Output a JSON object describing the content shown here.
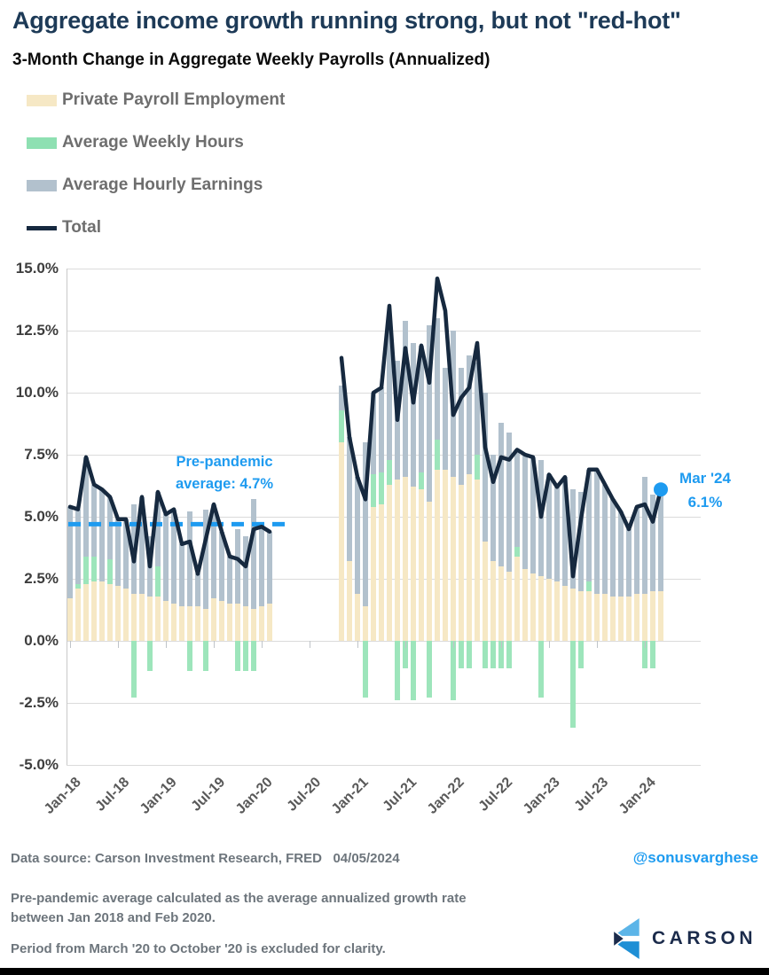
{
  "title": "Aggregate income growth running strong, but not \"red-hot\"",
  "subtitle": "3-Month Change in Aggregate Weekly Payrolls (Annualized)",
  "colors": {
    "title": "#1d3a57",
    "employment_bar": "#f6e8c5",
    "hours_bar": "#9de5bb",
    "earnings_bar": "#b2c1cd",
    "total_line": "#16293f",
    "accent_blue": "#1e9bf0",
    "gridline": "#dbdbdb",
    "footer_text": "#6d757c",
    "logo_navy": "#1b2b4b",
    "logo_light_blue": "#5cb5e8",
    "logo_mid_blue": "#1e8fd5"
  },
  "legend": {
    "items": [
      {
        "label": "Private Payroll Employment",
        "color": "#f6e8c5",
        "type": "box"
      },
      {
        "label": "Average Weekly Hours",
        "color": "#8ee0b2",
        "type": "box"
      },
      {
        "label": "Average Hourly Earnings",
        "color": "#b2c1cd",
        "type": "box"
      },
      {
        "label": "Total",
        "color": "#16293f",
        "type": "line"
      }
    ]
  },
  "chart_data": {
    "type": "bar",
    "subtype": "stacked-bar-with-line-overlay",
    "title": "3-Month Change in Aggregate Weekly Payrolls (Annualized)",
    "xlabel": "",
    "ylabel": "",
    "ylim": [
      -5.0,
      15.0
    ],
    "ytick_step": 2.5,
    "y_tick_labels": [
      "15.0%",
      "12.5%",
      "10.0%",
      "7.5%",
      "5.0%",
      "2.5%",
      "0.0%",
      "-2.5%",
      "-5.0%"
    ],
    "grid": true,
    "legend_position": "top-left",
    "excluded_period": {
      "from": "Mar-20",
      "to": "Oct-20",
      "note": "gap in bars and line"
    },
    "categories": [
      "Jan-18",
      "Feb-18",
      "Mar-18",
      "Apr-18",
      "May-18",
      "Jun-18",
      "Jul-18",
      "Aug-18",
      "Sep-18",
      "Oct-18",
      "Nov-18",
      "Dec-18",
      "Jan-19",
      "Feb-19",
      "Mar-19",
      "Apr-19",
      "May-19",
      "Jun-19",
      "Jul-19",
      "Aug-19",
      "Sep-19",
      "Oct-19",
      "Nov-19",
      "Dec-19",
      "Jan-20",
      "Feb-20",
      "Nov-20",
      "Dec-20",
      "Jan-21",
      "Feb-21",
      "Mar-21",
      "Apr-21",
      "May-21",
      "Jun-21",
      "Jul-21",
      "Aug-21",
      "Sep-21",
      "Oct-21",
      "Nov-21",
      "Dec-21",
      "Jan-22",
      "Feb-22",
      "Mar-22",
      "Apr-22",
      "May-22",
      "Jun-22",
      "Jul-22",
      "Aug-22",
      "Sep-22",
      "Oct-22",
      "Nov-22",
      "Dec-22",
      "Jan-23",
      "Feb-23",
      "Mar-23",
      "Apr-23",
      "May-23",
      "Jun-23",
      "Jul-23",
      "Aug-23",
      "Sep-23",
      "Oct-23",
      "Nov-23",
      "Dec-23",
      "Jan-24",
      "Feb-24",
      "Mar-24"
    ],
    "gap_after_index": 25,
    "gap_slots": 8,
    "series": [
      {
        "name": "Private Payroll Employment",
        "color": "#f6e8c5",
        "values": [
          1.7,
          2.1,
          2.3,
          2.4,
          2.4,
          2.3,
          2.2,
          2.1,
          1.9,
          1.9,
          1.8,
          1.8,
          1.6,
          1.5,
          1.4,
          1.4,
          1.4,
          1.3,
          1.7,
          1.6,
          1.5,
          1.5,
          1.4,
          1.3,
          1.4,
          1.5,
          8.0,
          3.2,
          1.9,
          1.4,
          5.4,
          5.5,
          6.3,
          6.5,
          6.6,
          6.2,
          6.1,
          5.6,
          6.9,
          6.9,
          6.6,
          6.3,
          6.7,
          6.5,
          4.0,
          3.2,
          3.0,
          2.8,
          3.4,
          2.9,
          2.7,
          2.6,
          2.5,
          2.4,
          2.2,
          2.1,
          2.0,
          2.0,
          1.9,
          1.9,
          1.8,
          1.8,
          1.8,
          1.9,
          1.9,
          2.0,
          2.0
        ]
      },
      {
        "name": "Average Weekly Hours",
        "color": "#9de5bb",
        "values": [
          0,
          0.2,
          1.1,
          1.0,
          0,
          1.0,
          0,
          0,
          -2.3,
          0,
          -1.2,
          1.2,
          0,
          0,
          0,
          -1.2,
          0,
          -1.2,
          0,
          0,
          0,
          -1.2,
          -1.2,
          -1.2,
          0,
          0,
          1.3,
          0,
          0,
          -2.3,
          1.3,
          1.3,
          1.0,
          -2.4,
          -1.1,
          -2.4,
          0.7,
          -2.3,
          1.2,
          0,
          -2.4,
          -1.1,
          -1.1,
          1.0,
          -1.1,
          -1.1,
          -1.1,
          -1.1,
          0.4,
          0,
          0,
          -2.3,
          0,
          0,
          0,
          -3.5,
          -1.1,
          0.4,
          0,
          0,
          0,
          0,
          0,
          0,
          -1.1,
          -1.1,
          0
        ]
      },
      {
        "name": "Average Hourly Earnings",
        "color": "#b2c1cd",
        "values": [
          3.7,
          3.0,
          4.0,
          2.9,
          3.7,
          2.5,
          2.7,
          2.8,
          3.6,
          3.9,
          2.4,
          3.0,
          3.5,
          3.8,
          2.5,
          3.8,
          1.3,
          4.0,
          3.8,
          2.8,
          1.9,
          3.0,
          2.8,
          4.4,
          3.2,
          2.9,
          1.0,
          5.0,
          4.7,
          6.6,
          3.3,
          3.4,
          5.2,
          4.8,
          6.3,
          5.8,
          5.1,
          7.1,
          4.9,
          4.1,
          5.9,
          4.7,
          4.8,
          3.7,
          6.0,
          4.3,
          5.8,
          5.6,
          3.9,
          4.6,
          4.7,
          4.7,
          4.2,
          3.8,
          4.4,
          4.0,
          4.0,
          4.5,
          5.0,
          4.4,
          3.9,
          3.4,
          2.7,
          3.5,
          4.7,
          3.9,
          4.1
        ]
      }
    ],
    "total_line": {
      "name": "Total",
      "color": "#16293f",
      "values": [
        5.4,
        5.3,
        7.4,
        6.3,
        6.1,
        5.8,
        4.9,
        4.9,
        3.2,
        5.8,
        3.0,
        6.0,
        5.1,
        5.3,
        3.9,
        4.0,
        2.7,
        4.1,
        5.5,
        4.4,
        3.4,
        3.3,
        3.0,
        4.5,
        4.6,
        4.4,
        11.4,
        8.2,
        6.6,
        5.7,
        10.0,
        10.2,
        13.5,
        8.9,
        11.8,
        9.6,
        11.9,
        10.4,
        14.6,
        13.3,
        9.1,
        9.8,
        10.2,
        12.0,
        7.8,
        6.4,
        7.4,
        7.3,
        7.7,
        7.5,
        7.4,
        5.0,
        6.7,
        6.2,
        6.6,
        2.6,
        4.9,
        6.9,
        6.9,
        6.3,
        5.7,
        5.2,
        4.5,
        5.4,
        5.5,
        4.8,
        6.1
      ]
    },
    "x_ticks": [
      "Jan-18",
      "Jul-18",
      "Jan-19",
      "Jul-19",
      "Jan-20",
      "Jul-20",
      "Jan-21",
      "Jul-21",
      "Jan-22",
      "Jul-22",
      "Jan-23",
      "Jul-23",
      "Jan-24"
    ],
    "x_tick_slots": [
      0,
      6,
      12,
      18,
      24,
      30,
      36,
      42,
      48,
      54,
      60,
      66,
      72
    ],
    "reference_line": {
      "value": 4.7,
      "color": "#1e9bf0",
      "label_line1": "Pre-pandemic",
      "label_line2": "average: 4.7%"
    },
    "end_annotation": {
      "label_line1": "Mar '24",
      "label_line2": "6.1%",
      "value": 6.1,
      "color": "#1e9bf0"
    }
  },
  "footer": {
    "source": "Data source: Carson Investment Research, FRED",
    "date": "04/05/2024",
    "note1": "Pre-pandemic average calculated as the average annualized growth rate between Jan 2018 and Feb 2020.",
    "note2": "Period from March '20 to October '20 is excluded for clarity."
  },
  "branding": {
    "handle": "@sonusvarghese",
    "logo_text": "CARSON"
  }
}
